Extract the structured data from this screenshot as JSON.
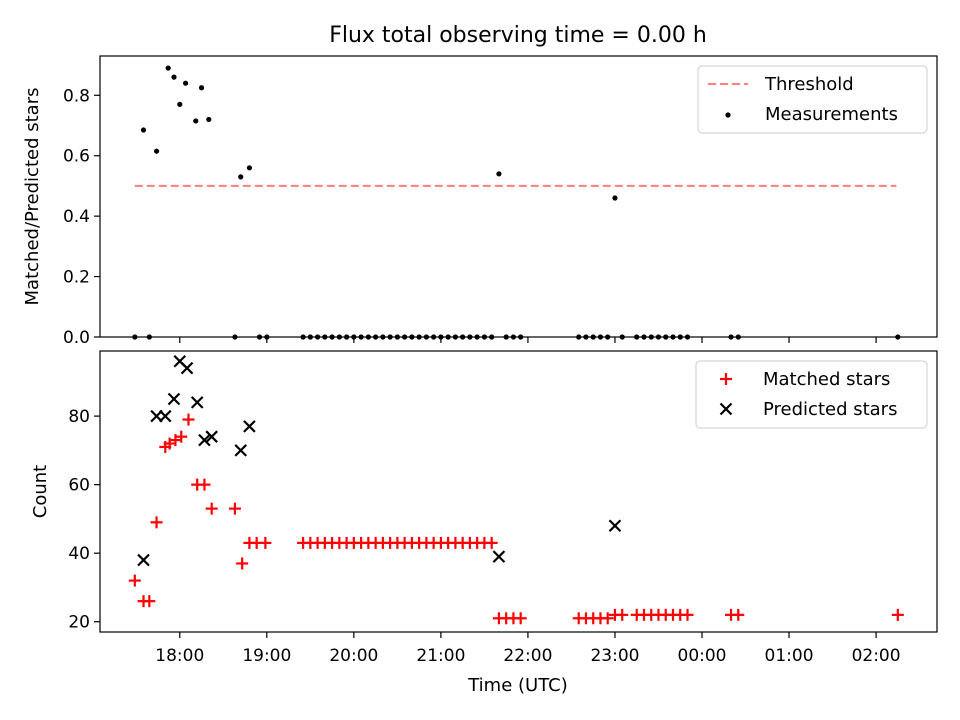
{
  "figure": {
    "title": "Flux total observing time = 0.00 h"
  },
  "chart_data": [
    {
      "type": "scatter",
      "ylabel": "Matched/Predicted stars",
      "xlabel": "",
      "xlim": [
        "17:05",
        "26:42"
      ],
      "ylim": [
        0,
        0.93
      ],
      "yticks": [
        0.0,
        0.2,
        0.4,
        0.6,
        0.8
      ],
      "ytick_labels": [
        "0.0",
        "0.2",
        "0.4",
        "0.6",
        "0.8"
      ],
      "legend_position": "upper-right",
      "threshold": {
        "name": "Threshold",
        "value": 0.5,
        "x": [
          "17:29",
          "26:14"
        ],
        "color": "#ff7f7f",
        "style": "dashed"
      },
      "series": [
        {
          "name": "Measurements",
          "color": "#000000",
          "marker": "dot",
          "points": [
            [
              "17:29",
              0.0
            ],
            [
              "17:35",
              0.685
            ],
            [
              "17:39",
              0.0
            ],
            [
              "17:44",
              0.615
            ],
            [
              "17:52",
              0.89
            ],
            [
              "17:56",
              0.86
            ],
            [
              "18:00",
              0.77
            ],
            [
              "18:04",
              0.84
            ],
            [
              "18:11",
              0.715
            ],
            [
              "18:15",
              0.825
            ],
            [
              "18:20",
              0.72
            ],
            [
              "18:38",
              0.0
            ],
            [
              "18:42",
              0.53
            ],
            [
              "18:48",
              0.56
            ],
            [
              "18:55",
              0.0
            ],
            [
              "19:00",
              0.0
            ],
            [
              "19:25",
              0.0
            ],
            [
              "19:30",
              0.0
            ],
            [
              "19:35",
              0.0
            ],
            [
              "19:40",
              0.0
            ],
            [
              "19:45",
              0.0
            ],
            [
              "19:50",
              0.0
            ],
            [
              "19:55",
              0.0
            ],
            [
              "20:00",
              0.0
            ],
            [
              "20:05",
              0.0
            ],
            [
              "20:10",
              0.0
            ],
            [
              "20:15",
              0.0
            ],
            [
              "20:20",
              0.0
            ],
            [
              "20:25",
              0.0
            ],
            [
              "20:30",
              0.0
            ],
            [
              "20:35",
              0.0
            ],
            [
              "20:40",
              0.0
            ],
            [
              "20:45",
              0.0
            ],
            [
              "20:50",
              0.0
            ],
            [
              "20:55",
              0.0
            ],
            [
              "21:00",
              0.0
            ],
            [
              "21:05",
              0.0
            ],
            [
              "21:10",
              0.0
            ],
            [
              "21:15",
              0.0
            ],
            [
              "21:20",
              0.0
            ],
            [
              "21:25",
              0.0
            ],
            [
              "21:30",
              0.0
            ],
            [
              "21:35",
              0.0
            ],
            [
              "21:40",
              0.54
            ],
            [
              "21:45",
              0.0
            ],
            [
              "21:50",
              0.0
            ],
            [
              "21:55",
              0.0
            ],
            [
              "22:35",
              0.0
            ],
            [
              "22:40",
              0.0
            ],
            [
              "22:45",
              0.0
            ],
            [
              "22:50",
              0.0
            ],
            [
              "22:55",
              0.0
            ],
            [
              "23:00",
              0.46
            ],
            [
              "23:05",
              0.0
            ],
            [
              "23:15",
              0.0
            ],
            [
              "23:20",
              0.0
            ],
            [
              "23:25",
              0.0
            ],
            [
              "23:30",
              0.0
            ],
            [
              "23:35",
              0.0
            ],
            [
              "23:40",
              0.0
            ],
            [
              "23:45",
              0.0
            ],
            [
              "23:50",
              0.0
            ],
            [
              "24:20",
              0.0
            ],
            [
              "24:25",
              0.0
            ],
            [
              "26:15",
              0.0
            ]
          ]
        }
      ]
    },
    {
      "type": "scatter",
      "ylabel": "Count",
      "xlabel": "Time (UTC)",
      "xlim": [
        "17:05",
        "26:42"
      ],
      "ylim": [
        17,
        99
      ],
      "yticks": [
        20,
        40,
        60,
        80
      ],
      "ytick_labels": [
        "20",
        "40",
        "60",
        "80"
      ],
      "xticks": [
        "18:00",
        "19:00",
        "20:00",
        "21:00",
        "22:00",
        "23:00",
        "24:00",
        "25:00",
        "26:00"
      ],
      "xtick_labels": [
        "18:00",
        "19:00",
        "20:00",
        "21:00",
        "22:00",
        "23:00",
        "00:00",
        "01:00",
        "02:00"
      ],
      "legend_position": "upper-right",
      "series": [
        {
          "name": "Matched stars",
          "color": "#ff0000",
          "marker": "plus",
          "points": [
            [
              "17:29",
              32
            ],
            [
              "17:35",
              26
            ],
            [
              "17:39",
              26
            ],
            [
              "17:44",
              49
            ],
            [
              "17:50",
              71
            ],
            [
              "17:53",
              72
            ],
            [
              "17:57",
              73
            ],
            [
              "18:01",
              74
            ],
            [
              "18:06",
              79
            ],
            [
              "18:12",
              60
            ],
            [
              "18:17",
              60
            ],
            [
              "18:22",
              53
            ],
            [
              "18:38",
              53
            ],
            [
              "18:43",
              37
            ],
            [
              "18:48",
              43
            ],
            [
              "18:53",
              43
            ],
            [
              "18:59",
              43
            ],
            [
              "19:25",
              43
            ],
            [
              "19:30",
              43
            ],
            [
              "19:35",
              43
            ],
            [
              "19:40",
              43
            ],
            [
              "19:45",
              43
            ],
            [
              "19:50",
              43
            ],
            [
              "19:55",
              43
            ],
            [
              "20:00",
              43
            ],
            [
              "20:05",
              43
            ],
            [
              "20:10",
              43
            ],
            [
              "20:15",
              43
            ],
            [
              "20:20",
              43
            ],
            [
              "20:25",
              43
            ],
            [
              "20:30",
              43
            ],
            [
              "20:35",
              43
            ],
            [
              "20:40",
              43
            ],
            [
              "20:45",
              43
            ],
            [
              "20:50",
              43
            ],
            [
              "20:55",
              43
            ],
            [
              "21:00",
              43
            ],
            [
              "21:05",
              43
            ],
            [
              "21:10",
              43
            ],
            [
              "21:15",
              43
            ],
            [
              "21:20",
              43
            ],
            [
              "21:25",
              43
            ],
            [
              "21:30",
              43
            ],
            [
              "21:35",
              43
            ],
            [
              "21:40",
              21
            ],
            [
              "21:45",
              21
            ],
            [
              "21:50",
              21
            ],
            [
              "21:55",
              21
            ],
            [
              "22:35",
              21
            ],
            [
              "22:40",
              21
            ],
            [
              "22:45",
              21
            ],
            [
              "22:50",
              21
            ],
            [
              "22:55",
              21
            ],
            [
              "23:00",
              22
            ],
            [
              "23:05",
              22
            ],
            [
              "23:15",
              22
            ],
            [
              "23:20",
              22
            ],
            [
              "23:25",
              22
            ],
            [
              "23:30",
              22
            ],
            [
              "23:35",
              22
            ],
            [
              "23:40",
              22
            ],
            [
              "23:45",
              22
            ],
            [
              "23:50",
              22
            ],
            [
              "24:20",
              22
            ],
            [
              "24:25",
              22
            ],
            [
              "26:15",
              22
            ]
          ]
        },
        {
          "name": "Predicted stars",
          "color": "#000000",
          "marker": "cross",
          "points": [
            [
              "17:35",
              38
            ],
            [
              "17:44",
              80
            ],
            [
              "17:50",
              80
            ],
            [
              "17:56",
              85
            ],
            [
              "18:00",
              96
            ],
            [
              "18:05",
              94
            ],
            [
              "18:12",
              84
            ],
            [
              "18:17",
              73
            ],
            [
              "18:22",
              74
            ],
            [
              "18:42",
              70
            ],
            [
              "18:48",
              77
            ],
            [
              "21:40",
              39
            ],
            [
              "23:00",
              48
            ]
          ]
        }
      ]
    }
  ]
}
